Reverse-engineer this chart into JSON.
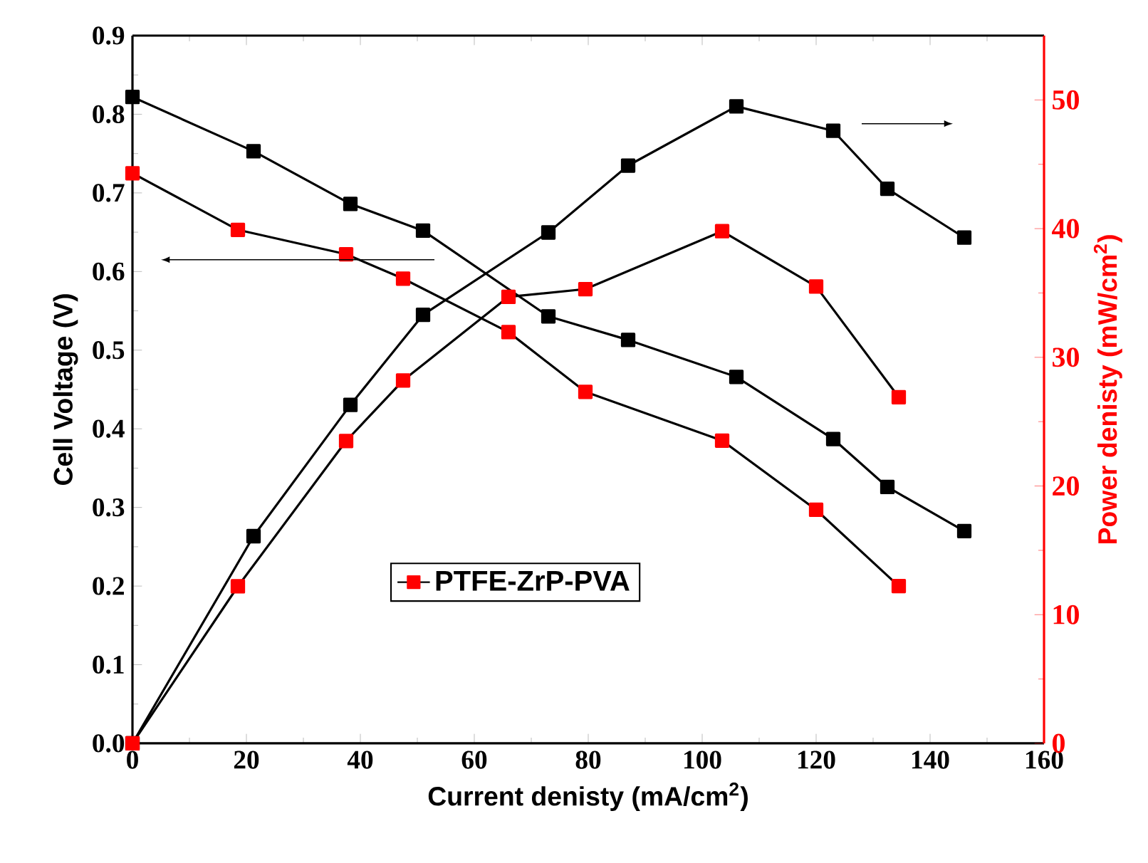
{
  "chart_data": {
    "type": "line",
    "xlabel": "Current denisty (mA/cm$^{2}$)",
    "ylabel": "Cell Voltage (V)",
    "y2label": "Power denisty (mW/cm$^{2}$)",
    "xlim": [
      0,
      160
    ],
    "xticks": [
      0,
      20,
      40,
      60,
      80,
      100,
      120,
      140,
      160
    ],
    "ylim": [
      0,
      0.9
    ],
    "yticks": [
      {
        "value": 0,
        "label": "0.0"
      },
      0.1,
      0.2,
      0.3,
      0.4,
      0.5,
      0.6,
      0.7,
      0.8,
      0.9
    ],
    "y2lim": [
      0,
      55
    ],
    "y2ticks": [
      0,
      10,
      20,
      30,
      40,
      50
    ],
    "marker": "square",
    "legend": "bottom",
    "series": [
      {
        "color": "#000000",
        "axis": "y",
        "x": [
          0,
          21.25,
          38.25,
          51,
          73,
          87,
          106,
          123,
          132.5,
          146
        ],
        "values": [
          0.822,
          0.753,
          0.686,
          0.652,
          0.543,
          0.513,
          0.466,
          0.387,
          0.326,
          0.27
        ]
      },
      {
        "name": "PTFE-ZrP-PVA",
        "color": "#ff0000",
        "axis": "y",
        "x": [
          0,
          18.5,
          37.5,
          47.5,
          66,
          79.5,
          103.5,
          120,
          134.5
        ],
        "values": [
          0.725,
          0.653,
          0.622,
          0.591,
          0.523,
          0.447,
          0.385,
          0.297,
          0.2
        ]
      },
      {
        "color": "#000000",
        "axis": "y2",
        "x": [
          0,
          21.25,
          38.25,
          51,
          73,
          87,
          106,
          123,
          132.5,
          146
        ],
        "values": [
          0,
          16.1,
          26.3,
          33.3,
          39.7,
          44.9,
          49.5,
          47.6,
          43.1,
          39.3
        ]
      },
      {
        "color": "#ff0000",
        "axis": "y2",
        "x": [
          0,
          18.5,
          37.5,
          47.5,
          66,
          79.5,
          103.5,
          120,
          134.5
        ],
        "values": [
          0,
          12.2,
          23.5,
          28.2,
          34.7,
          35.3,
          39.8,
          35.5,
          26.9
        ]
      }
    ]
  }
}
